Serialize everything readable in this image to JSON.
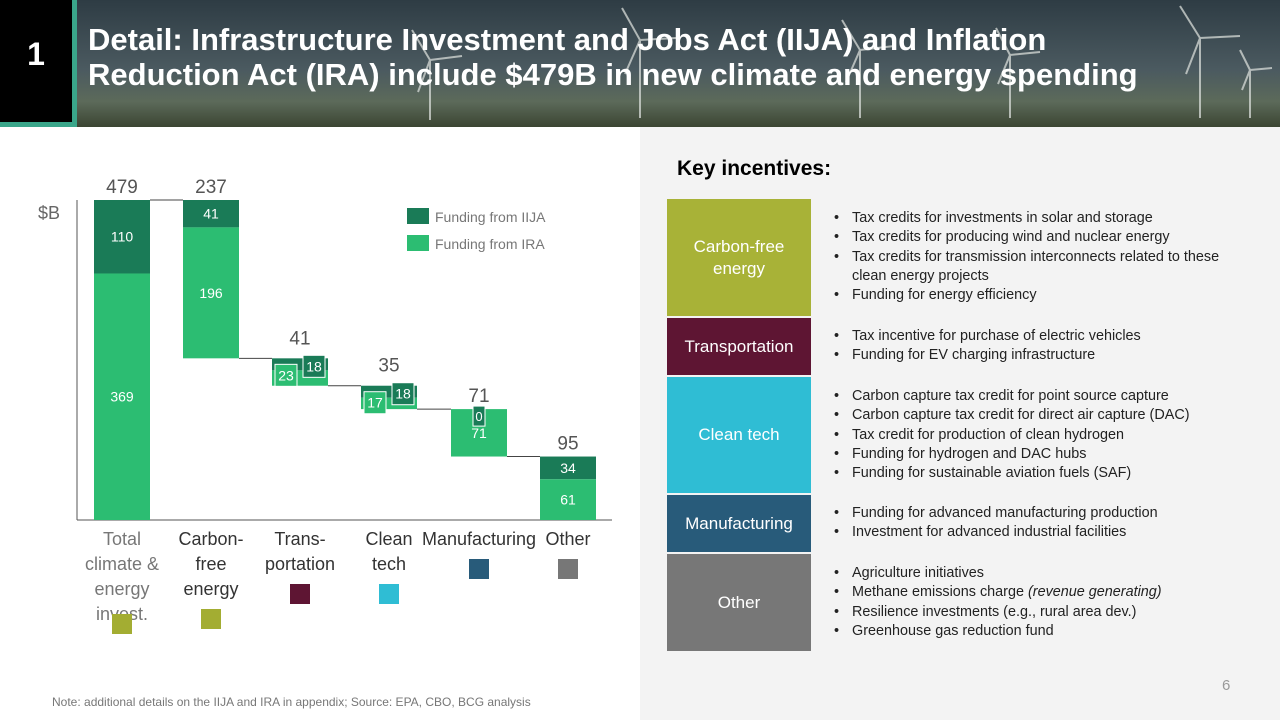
{
  "header": {
    "section_number": "1",
    "title_line1": "Detail: Infrastructure Investment and Jobs Act (IIJA) and Inflation",
    "title_line2": "Reduction Act (IRA) include $479B in new climate and energy spending"
  },
  "chart_data": {
    "type": "waterfall",
    "ylabel": "$B",
    "ylim": [
      0,
      479
    ],
    "legend": {
      "placement": "top-right",
      "entries": [
        "Funding from IIJA",
        "Funding from IRA"
      ]
    },
    "series_colors": {
      "iija": "#1a7b57",
      "ira": "#2cbd72"
    },
    "categories": [
      {
        "label_lines": [
          "Total",
          "climate &",
          "energy",
          "invest."
        ],
        "total": "479",
        "iija": 110,
        "ira": 369,
        "marker_color": "#a3ad32",
        "marker_label": "Carbon-free energy"
      },
      {
        "label_lines": [
          "Carbon-",
          "free",
          "energy"
        ],
        "total": "237",
        "iija": 41,
        "ira": 196,
        "marker_color": "#a3ad32"
      },
      {
        "label_lines": [
          "Trans-",
          "portation"
        ],
        "total": "41",
        "iija": 18,
        "ira": 23,
        "marker_color": "#5e1533"
      },
      {
        "label_lines": [
          "Clean",
          "tech"
        ],
        "total": "35",
        "iija": 18,
        "ira": 17,
        "marker_color": "#2fbdd4"
      },
      {
        "label_lines": [
          "Manufacturing"
        ],
        "total": "71",
        "iija": 0,
        "ira": 71,
        "marker_color": "#285b7a"
      },
      {
        "label_lines": [
          "Other"
        ],
        "total": "95",
        "iija": 34,
        "ira": 61,
        "marker_color": "#777777"
      }
    ]
  },
  "incentives": {
    "heading": "Key incentives:",
    "groups": [
      {
        "name": "Carbon-free energy",
        "color": "#a8b237",
        "items": [
          "Tax credits for investments in solar and storage",
          "Tax credits for producing wind and nuclear energy",
          "Tax credits for transmission interconnects related to these clean energy projects",
          "Funding for energy efficiency"
        ]
      },
      {
        "name": "Transportation",
        "color": "#5e1533",
        "items": [
          "Tax incentive for purchase of electric vehicles",
          "Funding for EV charging infrastructure"
        ]
      },
      {
        "name": "Clean tech",
        "color": "#2fbdd4",
        "items": [
          "Carbon capture tax credit for point source capture",
          "Carbon capture tax credit for direct air capture (DAC)",
          "Tax credit for production of clean hydrogen",
          "Funding for hydrogen and DAC hubs",
          "Funding for sustainable aviation fuels (SAF)"
        ]
      },
      {
        "name": "Manufacturing",
        "color": "#285b7a",
        "items": [
          "Funding for advanced manufacturing production",
          "Investment for advanced industrial facilities"
        ]
      },
      {
        "name": "Other",
        "color": "#777777",
        "items": [
          "Agriculture initiatives",
          "Methane emissions charge",
          "Resilience investments (e.g., rural area dev.)",
          "Greenhouse gas reduction fund"
        ]
      }
    ],
    "methane_note": "(revenue generating)"
  },
  "footer": {
    "note": "Note: additional details on the IIJA and IRA in appendix; Source: EPA, CBO, BCG analysis",
    "page_number": "6"
  }
}
